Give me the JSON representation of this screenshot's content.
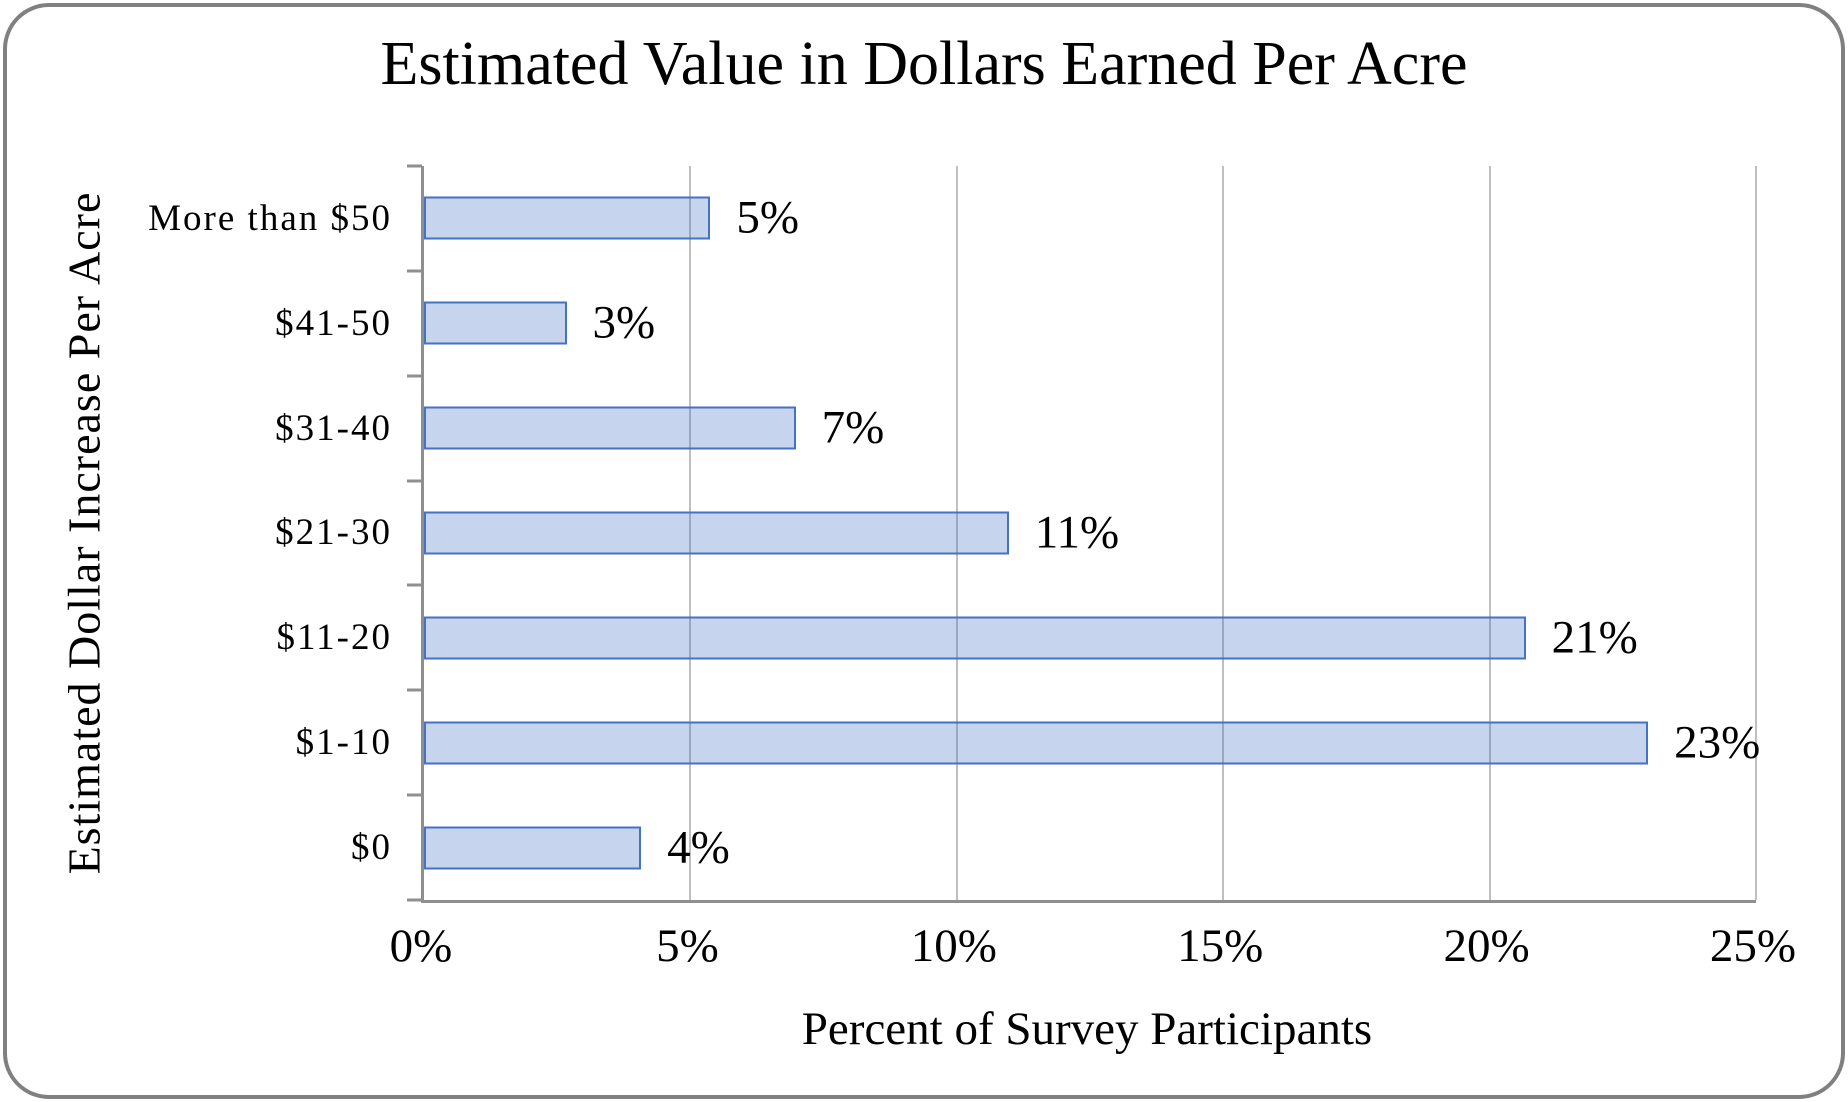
{
  "chart_data": {
    "type": "bar",
    "orientation": "horizontal",
    "title": "Estimated Value in Dollars Earned Per Acre",
    "xlabel": "Percent of Survey Participants",
    "ylabel": "Estimated Dollar Increase Per Acre",
    "categories": [
      "More than $50",
      "$41-50",
      "$31-40",
      "$21-30",
      "$11-20",
      "$1-10",
      "$0"
    ],
    "values": [
      5,
      3,
      7,
      11,
      21,
      23,
      4
    ],
    "data_labels": [
      "5%",
      "3%",
      "7%",
      "11%",
      "21%",
      "23%",
      "4%"
    ],
    "bar_lengths_pct": [
      5.3,
      2.6,
      6.9,
      10.9,
      20.6,
      22.9,
      4.0
    ],
    "x_ticks": [
      "0%",
      "5%",
      "10%",
      "15%",
      "20%",
      "25%"
    ],
    "x_tick_values": [
      0,
      5,
      10,
      15,
      20,
      25
    ],
    "xlim": [
      0,
      25
    ],
    "grid": "vertical-only",
    "legend": "none",
    "colors": {
      "bar_fill": "rgba(68,114,196,0.3)",
      "bar_border": "#4472c4",
      "gridline": "#bfbfbf",
      "axis": "#8f8f8f",
      "frame_border": "#808080",
      "text": "#000000"
    }
  }
}
